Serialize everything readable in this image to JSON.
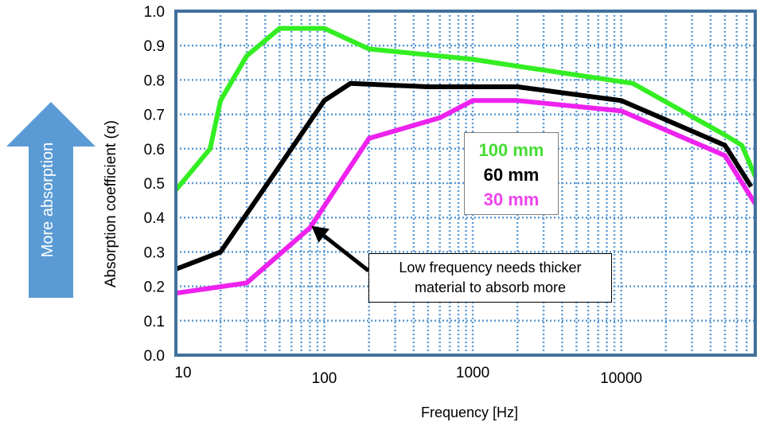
{
  "chart_data": {
    "type": "line",
    "xlabel": "Frequency [Hz]",
    "ylabel": "Absorption coefficient (α)",
    "xscale": "log",
    "xlim": [
      10,
      80000
    ],
    "ylim": [
      0,
      1
    ],
    "grid": true,
    "x_ticks": [
      "10",
      "100",
      "1000",
      "10000"
    ],
    "y_ticks": [
      "0.0",
      "0.1",
      "0.2",
      "0.3",
      "0.4",
      "0.5",
      "0.6",
      "0.7",
      "0.8",
      "0.9",
      "1.0"
    ],
    "series": [
      {
        "name": "100 mm",
        "color": "#33ee22",
        "x": [
          10,
          17,
          20,
          30,
          50,
          100,
          200,
          1000,
          2000,
          12000,
          50000,
          65000,
          80000
        ],
        "y": [
          0.48,
          0.6,
          0.74,
          0.87,
          0.95,
          0.95,
          0.89,
          0.86,
          0.84,
          0.79,
          0.64,
          0.61,
          0.52
        ]
      },
      {
        "name": "60 mm",
        "color": "#000000",
        "x": [
          10,
          20,
          50,
          100,
          150,
          500,
          2000,
          10000,
          50000,
          75000
        ],
        "y": [
          0.25,
          0.3,
          0.55,
          0.74,
          0.79,
          0.78,
          0.78,
          0.74,
          0.61,
          0.49
        ]
      },
      {
        "name": "30 mm",
        "color": "#ee22ee",
        "x": [
          10,
          30,
          80,
          200,
          600,
          1000,
          2000,
          10000,
          50000,
          80000
        ],
        "y": [
          0.18,
          0.21,
          0.37,
          0.63,
          0.69,
          0.74,
          0.74,
          0.71,
          0.58,
          0.44
        ]
      }
    ],
    "legend": [
      "100 mm",
      "60 mm",
      "30 mm"
    ],
    "legend_colors": [
      "#44dd33",
      "#000000",
      "#ee44ee"
    ],
    "legend_position": "center-right",
    "annotation": {
      "lines": [
        "Low frequency needs thicker",
        "material to absorb more"
      ],
      "points_to": {
        "x": 80,
        "y": 0.38
      }
    }
  },
  "side_arrow": {
    "label": "More absorption",
    "color": "#5b9bd5",
    "direction": "up"
  },
  "colors": {
    "frame": "#41719c",
    "grid": "#5b9bd5"
  }
}
